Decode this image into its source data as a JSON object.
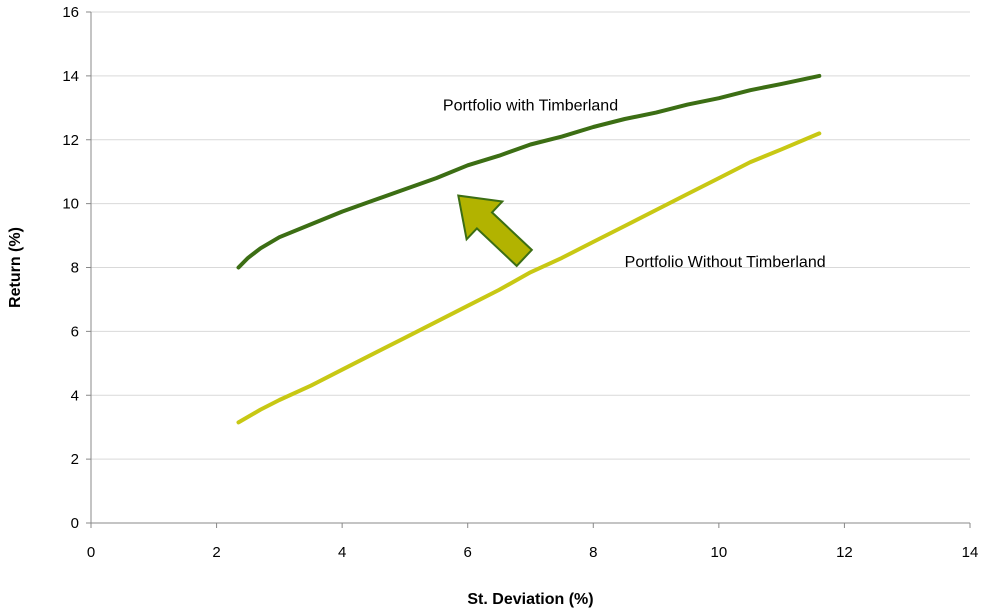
{
  "chart_data": {
    "type": "line",
    "xlabel": "St. Deviation (%)",
    "ylabel": "Return (%)",
    "xlim": [
      0,
      14
    ],
    "ylim": [
      0,
      16
    ],
    "xticks": [
      0,
      2,
      4,
      6,
      8,
      10,
      12,
      14
    ],
    "yticks": [
      0,
      2,
      4,
      6,
      8,
      10,
      12,
      14,
      16
    ],
    "grid": "horizontal",
    "series": [
      {
        "name": "Portfolio with Timberland",
        "color": "#3c6e14",
        "points": [
          [
            2.35,
            8.0
          ],
          [
            2.5,
            8.3
          ],
          [
            2.7,
            8.6
          ],
          [
            3.0,
            8.95
          ],
          [
            3.5,
            9.35
          ],
          [
            4.0,
            9.75
          ],
          [
            4.5,
            10.1
          ],
          [
            5.0,
            10.45
          ],
          [
            5.5,
            10.8
          ],
          [
            6.0,
            11.2
          ],
          [
            6.5,
            11.5
          ],
          [
            7.0,
            11.85
          ],
          [
            7.5,
            12.1
          ],
          [
            8.0,
            12.4
          ],
          [
            8.5,
            12.65
          ],
          [
            9.0,
            12.85
          ],
          [
            9.5,
            13.1
          ],
          [
            10.0,
            13.3
          ],
          [
            10.5,
            13.55
          ],
          [
            11.0,
            13.75
          ],
          [
            11.6,
            14.0
          ]
        ]
      },
      {
        "name": "Portfolio Without Timberland",
        "color": "#c8c814",
        "points": [
          [
            2.35,
            3.15
          ],
          [
            2.7,
            3.55
          ],
          [
            3.0,
            3.85
          ],
          [
            3.5,
            4.3
          ],
          [
            4.0,
            4.8
          ],
          [
            4.5,
            5.3
          ],
          [
            5.0,
            5.8
          ],
          [
            5.5,
            6.3
          ],
          [
            6.0,
            6.8
          ],
          [
            6.5,
            7.3
          ],
          [
            7.0,
            7.85
          ],
          [
            7.5,
            8.3
          ],
          [
            8.0,
            8.8
          ],
          [
            8.5,
            9.3
          ],
          [
            9.0,
            9.8
          ],
          [
            9.5,
            10.3
          ],
          [
            10.0,
            10.8
          ],
          [
            10.5,
            11.3
          ],
          [
            11.0,
            11.7
          ],
          [
            11.6,
            12.2
          ]
        ]
      }
    ],
    "annotations": [
      {
        "text": "Portfolio with Timberland",
        "x": 7.0,
        "y": 13.1
      },
      {
        "text": "Portfolio Without Timberland",
        "x": 10.1,
        "y": 8.2
      }
    ],
    "arrow": {
      "from": [
        6.9,
        8.3
      ],
      "to": [
        5.85,
        10.25
      ],
      "fill": "#b2b300",
      "stroke": "#3c6e14"
    }
  }
}
